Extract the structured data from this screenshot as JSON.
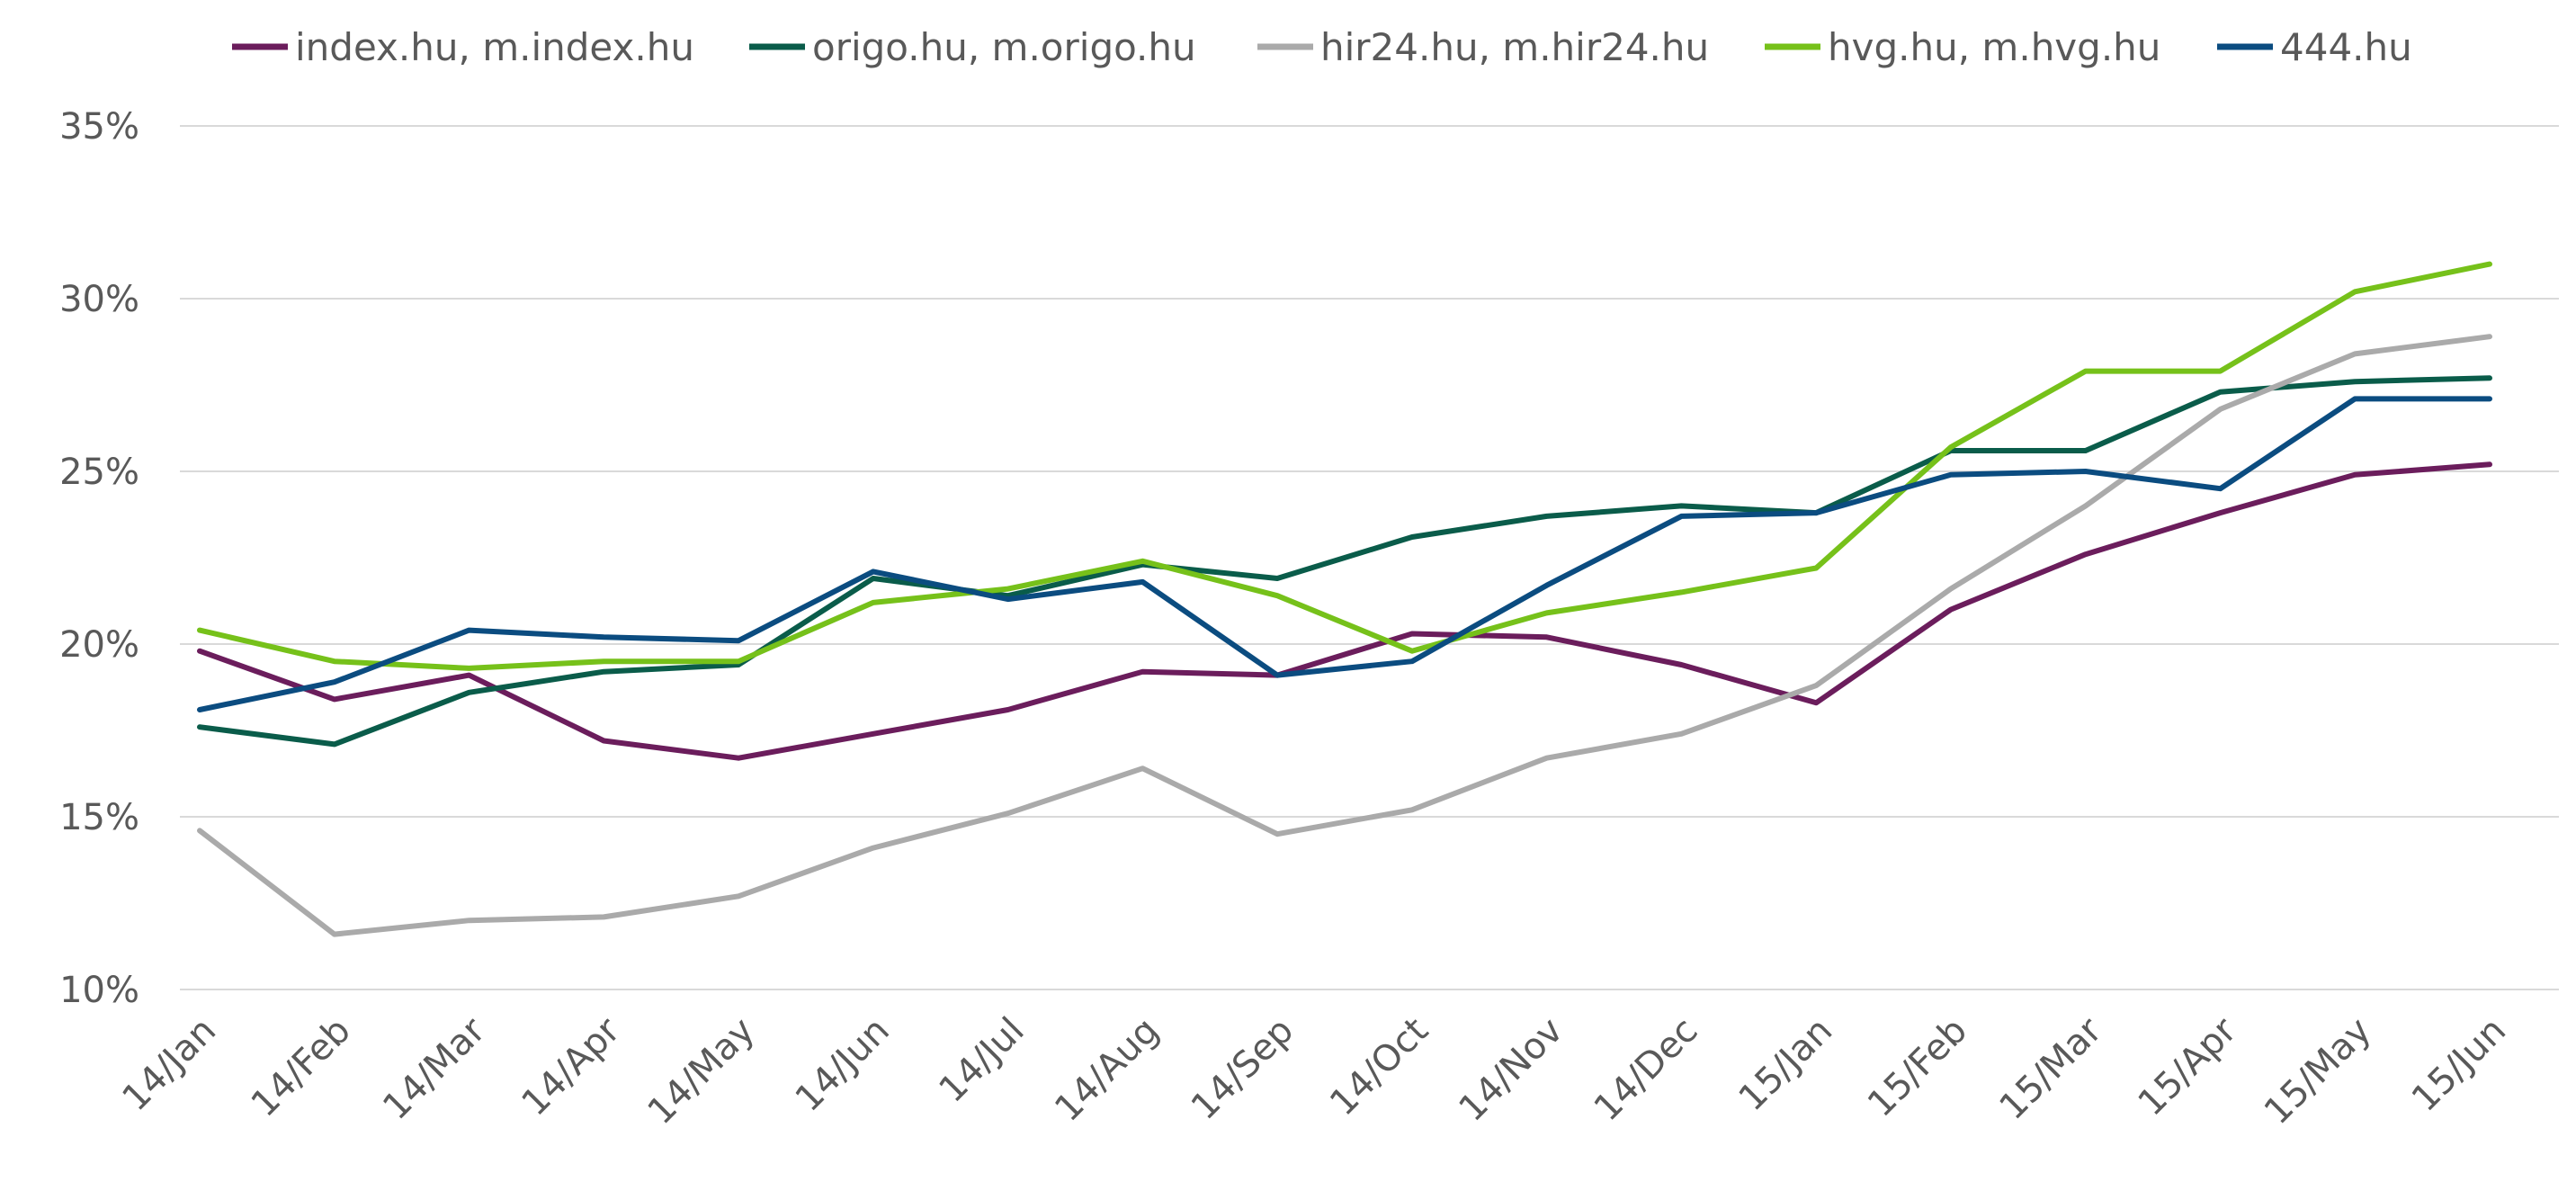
{
  "chart_data": {
    "type": "line",
    "title": "",
    "xlabel": "",
    "ylabel": "",
    "categories": [
      "14/Jan",
      "14/Feb",
      "14/Mar",
      "14/Apr",
      "14/May",
      "14/Jun",
      "14/Jul",
      "14/Aug",
      "14/Sep",
      "14/Oct",
      "14/Nov",
      "14/Dec",
      "15/Jan",
      "15/Feb",
      "15/Mar",
      "15/Apr",
      "15/May",
      "15/Jun"
    ],
    "ylim": [
      10,
      35
    ],
    "yticks": [
      10,
      15,
      20,
      25,
      30,
      35
    ],
    "ytick_labels": [
      "10%",
      "15%",
      "20%",
      "25%",
      "30%",
      "35%"
    ],
    "grid": true,
    "legend_position": "top",
    "series": [
      {
        "name": "index.hu, m.index.hu",
        "color": "#6B1D5C",
        "values": [
          19.8,
          18.4,
          19.1,
          17.2,
          16.7,
          17.4,
          18.1,
          19.2,
          19.1,
          20.3,
          20.2,
          19.4,
          18.3,
          21.0,
          22.6,
          23.8,
          24.9,
          25.2
        ]
      },
      {
        "name": "origo.hu, m.origo.hu",
        "color": "#0A5C4A",
        "values": [
          17.6,
          17.1,
          18.6,
          19.2,
          19.4,
          21.9,
          21.4,
          22.3,
          21.9,
          23.1,
          23.7,
          24.0,
          23.8,
          25.6,
          25.6,
          27.3,
          27.6,
          27.7
        ]
      },
      {
        "name": "hir24.hu, m.hir24.hu",
        "color": "#AAAAAA",
        "values": [
          14.6,
          11.6,
          12.0,
          12.1,
          12.7,
          14.1,
          15.1,
          16.4,
          14.5,
          15.2,
          16.7,
          17.4,
          18.8,
          21.6,
          24.0,
          26.8,
          28.4,
          28.9
        ]
      },
      {
        "name": "hvg.hu, m.hvg.hu",
        "color": "#76C11A",
        "values": [
          20.4,
          19.5,
          19.3,
          19.5,
          19.5,
          21.2,
          21.6,
          22.4,
          21.4,
          19.8,
          20.9,
          21.5,
          22.2,
          25.7,
          27.9,
          27.9,
          30.2,
          31.0
        ]
      },
      {
        "name": "444.hu",
        "color": "#0B4C80",
        "values": [
          18.1,
          18.9,
          20.4,
          20.2,
          20.1,
          22.1,
          21.3,
          21.8,
          19.1,
          19.5,
          21.7,
          23.7,
          23.8,
          24.9,
          25.0,
          24.5,
          27.1,
          27.1
        ]
      }
    ]
  }
}
